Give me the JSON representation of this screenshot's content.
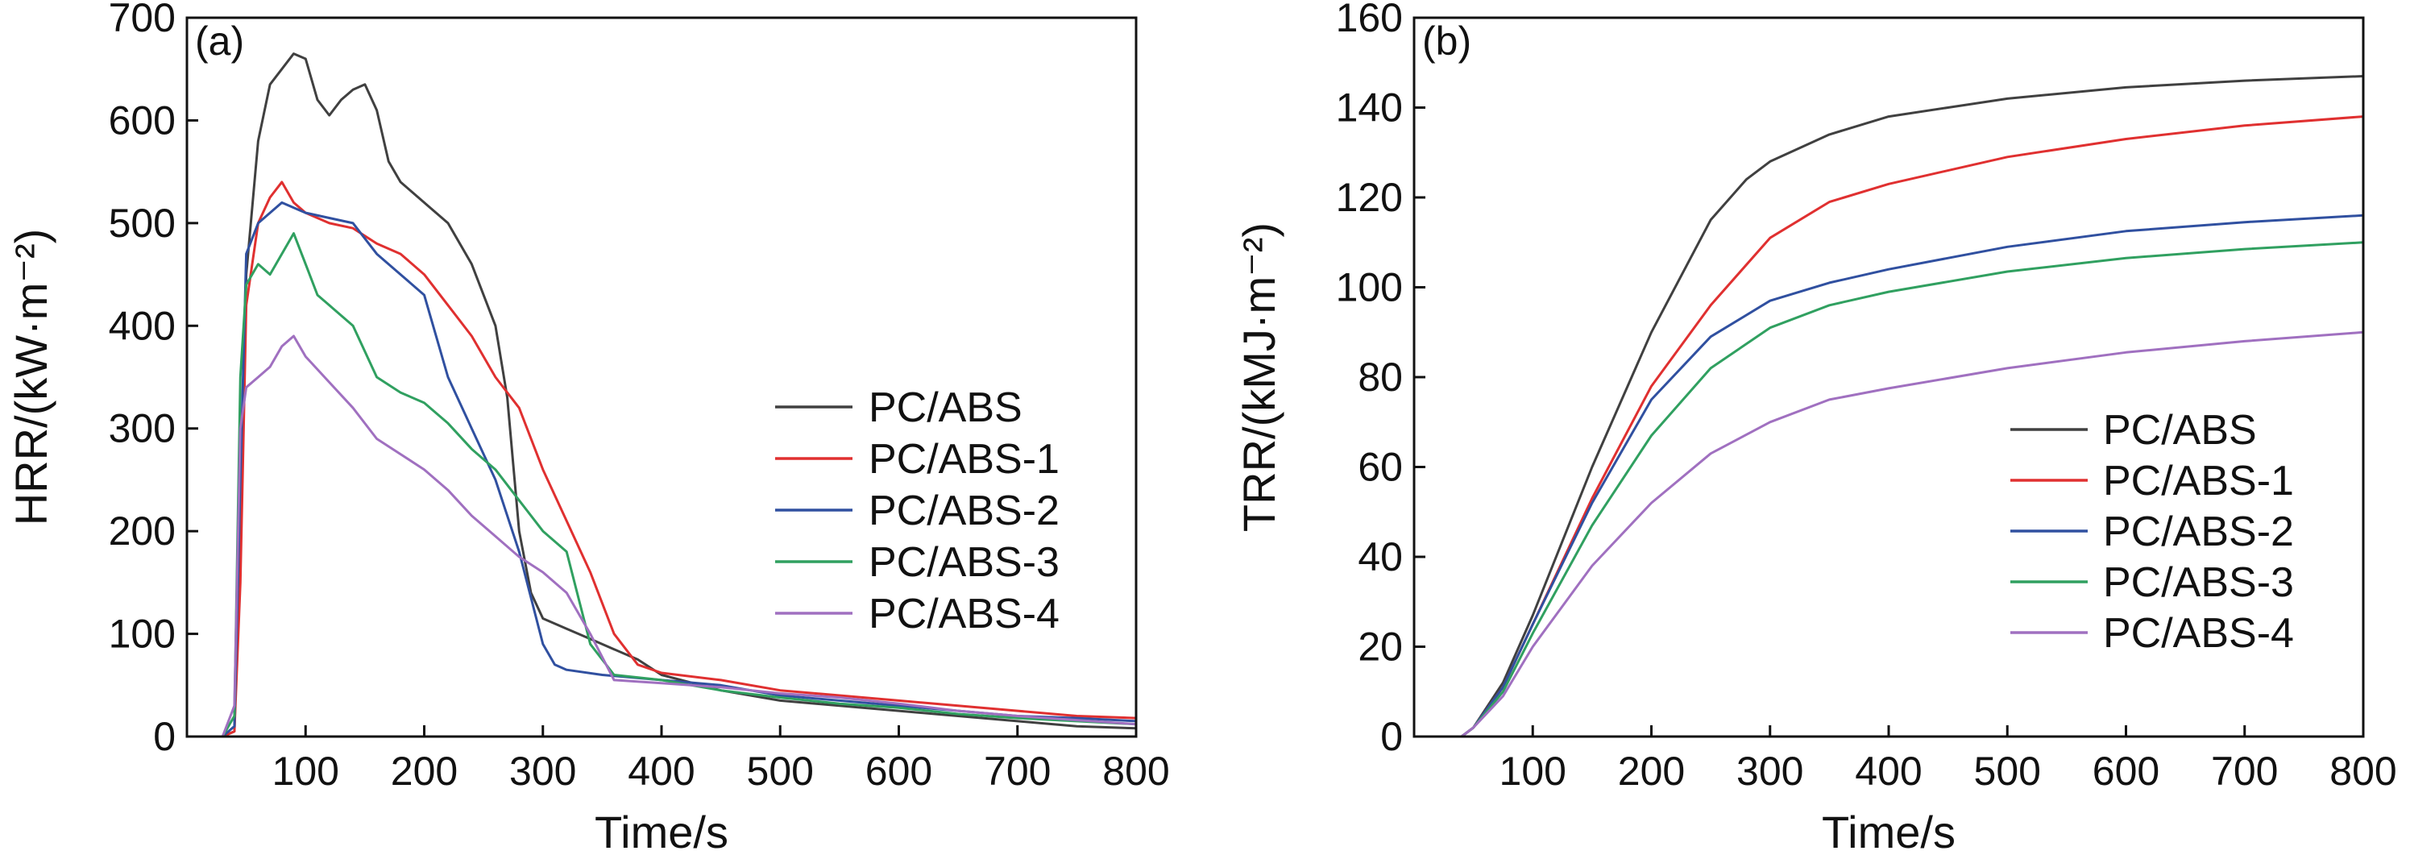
{
  "chart_data": [
    {
      "panel_label": "(a)",
      "type": "line",
      "xlabel": "Time/s",
      "ylabel": "HRR/(kW·m⁻²)",
      "xlim": [
        0,
        800
      ],
      "ylim": [
        0,
        700
      ],
      "xticks": [
        100,
        200,
        300,
        400,
        500,
        600,
        700,
        800
      ],
      "yticks": [
        0,
        100,
        200,
        300,
        400,
        500,
        600,
        700
      ],
      "grid": false,
      "legend_position": "center-right",
      "series": [
        {
          "name": "PC/ABS",
          "color": "#404040",
          "x": [
            0,
            30,
            40,
            45,
            50,
            60,
            70,
            80,
            90,
            100,
            110,
            120,
            130,
            140,
            150,
            160,
            170,
            180,
            190,
            200,
            220,
            240,
            260,
            270,
            280,
            290,
            300,
            320,
            340,
            360,
            380,
            400,
            450,
            500,
            550,
            600,
            650,
            700,
            750,
            800
          ],
          "y": [
            0,
            0,
            5,
            200,
            450,
            580,
            635,
            650,
            665,
            660,
            620,
            605,
            620,
            630,
            635,
            610,
            560,
            540,
            530,
            520,
            500,
            460,
            400,
            330,
            200,
            140,
            115,
            105,
            95,
            85,
            75,
            60,
            45,
            35,
            30,
            25,
            20,
            15,
            10,
            8
          ]
        },
        {
          "name": "PC/ABS-1",
          "color": "#e03030",
          "x": [
            0,
            30,
            40,
            45,
            50,
            60,
            70,
            80,
            90,
            100,
            120,
            140,
            160,
            180,
            200,
            220,
            240,
            260,
            280,
            300,
            320,
            340,
            360,
            380,
            400,
            450,
            500,
            550,
            600,
            650,
            700,
            750,
            800
          ],
          "y": [
            0,
            0,
            5,
            150,
            420,
            500,
            525,
            540,
            520,
            510,
            500,
            495,
            480,
            470,
            450,
            420,
            390,
            350,
            320,
            260,
            210,
            160,
            100,
            70,
            62,
            55,
            45,
            40,
            35,
            30,
            25,
            20,
            18
          ]
        },
        {
          "name": "PC/ABS-2",
          "color": "#3050a0",
          "x": [
            0,
            30,
            40,
            45,
            50,
            60,
            70,
            80,
            90,
            100,
            120,
            140,
            160,
            180,
            200,
            220,
            240,
            260,
            280,
            300,
            310,
            320,
            350,
            400,
            450,
            500,
            550,
            600,
            650,
            700,
            750,
            800
          ],
          "y": [
            0,
            0,
            10,
            250,
            470,
            500,
            510,
            520,
            515,
            510,
            505,
            500,
            470,
            450,
            430,
            350,
            300,
            250,
            180,
            90,
            70,
            65,
            60,
            55,
            50,
            40,
            35,
            30,
            25,
            20,
            18,
            15
          ]
        },
        {
          "name": "PC/ABS-3",
          "color": "#30a060",
          "x": [
            0,
            30,
            40,
            45,
            50,
            60,
            70,
            80,
            90,
            100,
            110,
            120,
            140,
            160,
            180,
            200,
            220,
            240,
            260,
            280,
            300,
            320,
            340,
            360,
            400,
            450,
            500,
            550,
            600,
            650,
            700,
            750,
            800
          ],
          "y": [
            0,
            0,
            20,
            350,
            440,
            460,
            450,
            470,
            490,
            460,
            430,
            420,
            400,
            350,
            335,
            325,
            305,
            280,
            260,
            230,
            200,
            180,
            90,
            60,
            55,
            45,
            38,
            32,
            28,
            22,
            18,
            15,
            12
          ]
        },
        {
          "name": "PC/ABS-4",
          "color": "#a070c0",
          "x": [
            0,
            30,
            40,
            45,
            50,
            60,
            70,
            80,
            90,
            100,
            120,
            140,
            160,
            180,
            200,
            220,
            240,
            260,
            280,
            300,
            320,
            340,
            360,
            400,
            450,
            500,
            550,
            600,
            650,
            700,
            750,
            800
          ],
          "y": [
            0,
            0,
            30,
            300,
            340,
            350,
            360,
            380,
            390,
            370,
            345,
            320,
            290,
            275,
            260,
            240,
            215,
            195,
            175,
            160,
            140,
            100,
            55,
            52,
            48,
            42,
            38,
            32,
            25,
            20,
            16,
            12
          ]
        }
      ]
    },
    {
      "panel_label": "(b)",
      "type": "line",
      "xlabel": "Time/s",
      "ylabel": "TRR/(kMJ·m⁻²)",
      "xlim": [
        0,
        800
      ],
      "ylim": [
        0,
        160
      ],
      "xticks": [
        100,
        200,
        300,
        400,
        500,
        600,
        700,
        800
      ],
      "yticks": [
        0,
        20,
        40,
        60,
        80,
        100,
        120,
        140,
        160
      ],
      "grid": false,
      "legend_position": "bottom-right",
      "series": [
        {
          "name": "PC/ABS",
          "color": "#404040",
          "x": [
            0,
            40,
            50,
            75,
            100,
            150,
            200,
            250,
            280,
            300,
            350,
            400,
            450,
            500,
            600,
            700,
            800
          ],
          "y": [
            0,
            0,
            2,
            12,
            27,
            60,
            90,
            115,
            124,
            128,
            134,
            138,
            140,
            142,
            144.5,
            146,
            147
          ]
        },
        {
          "name": "PC/ABS-1",
          "color": "#e03030",
          "x": [
            0,
            40,
            50,
            75,
            100,
            150,
            200,
            250,
            300,
            350,
            400,
            500,
            600,
            700,
            800
          ],
          "y": [
            0,
            0,
            2,
            11,
            25,
            53,
            78,
            96,
            111,
            119,
            123,
            129,
            133,
            136,
            138
          ]
        },
        {
          "name": "PC/ABS-2",
          "color": "#3050a0",
          "x": [
            0,
            40,
            50,
            75,
            100,
            150,
            200,
            250,
            300,
            350,
            400,
            500,
            600,
            700,
            800
          ],
          "y": [
            0,
            0,
            2,
            11,
            25,
            52,
            75,
            89,
            97,
            101,
            104,
            109,
            112.5,
            114.5,
            116
          ]
        },
        {
          "name": "PC/ABS-3",
          "color": "#30a060",
          "x": [
            0,
            40,
            50,
            75,
            100,
            150,
            200,
            250,
            300,
            350,
            400,
            500,
            600,
            700,
            800
          ],
          "y": [
            0,
            0,
            2,
            10,
            23,
            47,
            67,
            82,
            91,
            96,
            99,
            103.5,
            106.5,
            108.5,
            110
          ]
        },
        {
          "name": "PC/ABS-4",
          "color": "#a070c0",
          "x": [
            0,
            40,
            50,
            75,
            100,
            150,
            200,
            250,
            300,
            350,
            400,
            500,
            600,
            700,
            800
          ],
          "y": [
            0,
            0,
            2,
            9,
            20,
            38,
            52,
            63,
            70,
            75,
            77.5,
            82,
            85.5,
            88,
            90
          ]
        }
      ]
    }
  ]
}
